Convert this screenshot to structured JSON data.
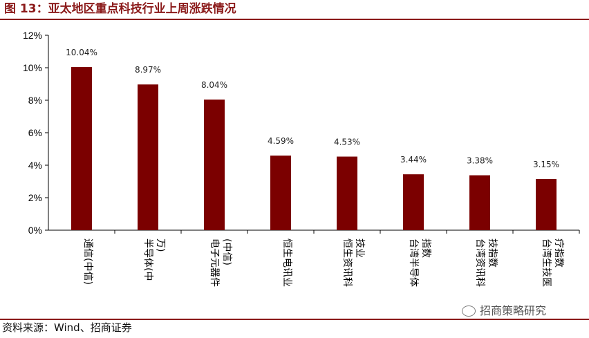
{
  "header": {
    "title": "图 13：亚太地区重点科技行业上周涨跌情况"
  },
  "footer": {
    "source": "资料来源：Wind、招商证券",
    "watermark": "招商策略研究"
  },
  "colors": {
    "bar": "#7B0000",
    "accent": "#8B1A1A"
  },
  "chart_data": {
    "type": "bar",
    "title": "",
    "xlabel": "",
    "ylabel": "",
    "categories": [
      [
        "通信(中信)"
      ],
      [
        "半导体(中",
        "万)"
      ],
      [
        "电子元器件",
        "(中信)"
      ],
      [
        "恒生电讯业"
      ],
      [
        "恒生资讯科",
        "技业"
      ],
      [
        "台湾半导体",
        "指数"
      ],
      [
        "台湾资讯科",
        "技指数"
      ],
      [
        "台湾生技医",
        "疗指数"
      ]
    ],
    "values": [
      10.04,
      8.97,
      8.04,
      4.59,
      4.53,
      3.44,
      3.38,
      3.15
    ],
    "data_labels": [
      "10.04%",
      "8.97%",
      "8.04%",
      "4.59%",
      "4.53%",
      "3.44%",
      "3.38%",
      "3.15%"
    ],
    "ylim": [
      0,
      12
    ],
    "yticks": [
      0,
      2,
      4,
      6,
      8,
      10,
      12
    ],
    "ytick_labels": [
      "0%",
      "2%",
      "4%",
      "6%",
      "8%",
      "10%",
      "12%"
    ],
    "grid": false,
    "legend": "none"
  }
}
